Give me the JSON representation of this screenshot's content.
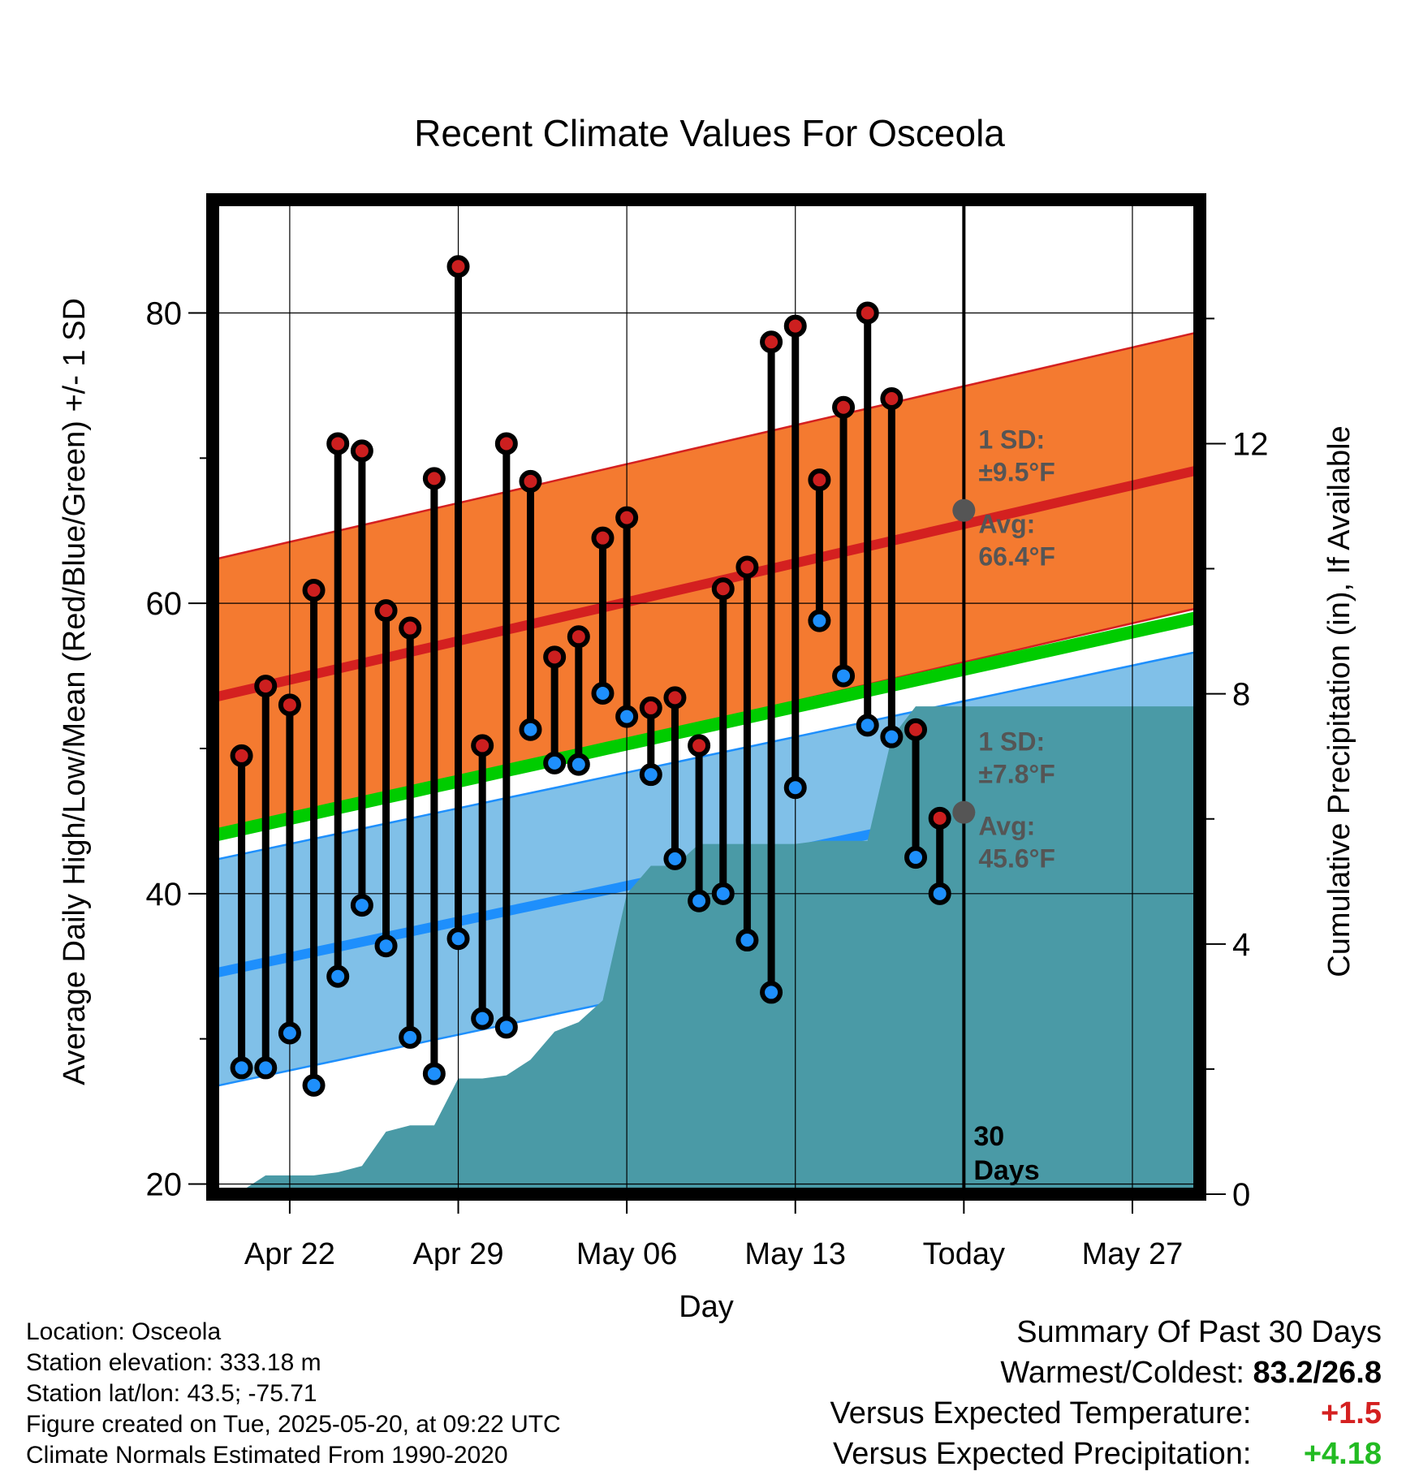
{
  "chart_data": {
    "type": "line",
    "title": "Recent Climate Values For Osceola",
    "xlabel": "Day",
    "ylabel": "Average Daily High/Low/Mean (Red/Blue/Green) +/- 1 SD",
    "y2label": "Cumulative Precipitation (in), If Available",
    "ylim": [
      19.3,
      87.8
    ],
    "y2lim": [
      0,
      15.9
    ],
    "yticks": [
      20,
      40,
      60,
      80
    ],
    "y2ticks": [
      0,
      4,
      8,
      12
    ],
    "x_day_range": [
      -31.2,
      9.8
    ],
    "xticks": [
      {
        "day": -28,
        "label": "Apr 22"
      },
      {
        "day": -21,
        "label": "Apr 29"
      },
      {
        "day": -14,
        "label": "May 06"
      },
      {
        "day": -7,
        "label": "May 13"
      },
      {
        "day": 0,
        "label": "Today"
      },
      {
        "day": 7,
        "label": "May 27"
      }
    ],
    "today_day": 0,
    "window_label": [
      "30",
      "Days"
    ],
    "daily": {
      "days": [
        -30,
        -29,
        -28,
        -27,
        -26,
        -25,
        -24,
        -23,
        -22,
        -21,
        -20,
        -19,
        -18,
        -17,
        -16,
        -15,
        -14,
        -13,
        -12,
        -11,
        -10,
        -9,
        -8,
        -7,
        -6,
        -5,
        -4,
        -3,
        -2,
        -1
      ],
      "highs": [
        49.5,
        54.3,
        53.0,
        60.9,
        71.0,
        70.5,
        59.5,
        58.3,
        68.6,
        83.2,
        50.2,
        71.0,
        68.4,
        56.3,
        57.7,
        64.5,
        65.9,
        52.8,
        53.5,
        50.2,
        61.0,
        62.5,
        78.0,
        79.1,
        68.5,
        73.5,
        80.0,
        74.1,
        51.3,
        45.2
      ],
      "lows": [
        28.0,
        28.0,
        30.4,
        26.8,
        34.3,
        39.2,
        36.4,
        30.1,
        27.6,
        36.9,
        31.4,
        30.8,
        51.3,
        49.0,
        48.9,
        53.8,
        52.2,
        48.2,
        42.4,
        39.5,
        40.0,
        36.8,
        33.2,
        47.3,
        58.8,
        55.0,
        51.6,
        50.8,
        42.5,
        40.0
      ]
    },
    "normals": {
      "day_start": -31.2,
      "day_end": 9.8,
      "high_avg": [
        53.5,
        69.2
      ],
      "high_sd": 9.5,
      "low_avg": [
        34.5,
        48.9
      ],
      "low_sd": 7.8
    },
    "mean_line_color": "#00cc00",
    "high_color": "#d42020",
    "high_band_color": "#f47a30",
    "low_color": "#1e8ffc",
    "low_band_color": "#80c0e8",
    "precip_color": "#4a9aa6",
    "high_point_color": "#cc1f1f",
    "low_point_color": "#1e8ffc",
    "precip": {
      "days": [
        -31.2,
        -30.0,
        -29.0,
        -28.0,
        -27.0,
        -26.0,
        -25.0,
        -24.0,
        -23.0,
        -22.0,
        -21.0,
        -20.0,
        -19.0,
        -18.0,
        -17.0,
        -16.0,
        -15.0,
        -14.0,
        -13.0,
        -12.0,
        -11.0,
        -10.0,
        -9.0,
        -8.0,
        -7.0,
        -6.0,
        -5.0,
        -4.0,
        -3.0,
        -2.0,
        -1.0,
        0.0,
        9.8
      ],
      "values": [
        0.05,
        0.05,
        0.3,
        0.3,
        0.3,
        0.35,
        0.45,
        1.0,
        1.1,
        1.1,
        1.85,
        1.85,
        1.9,
        2.15,
        2.6,
        2.75,
        3.1,
        4.8,
        5.25,
        5.25,
        5.6,
        5.6,
        5.6,
        5.6,
        5.6,
        5.65,
        5.65,
        5.65,
        7.3,
        7.8,
        7.8,
        7.8,
        7.8
      ]
    },
    "annotations": {
      "high_sd_label": "1 SD:",
      "high_sd_value": "±9.5°F",
      "high_avg_label": "Avg:",
      "high_avg_value": "66.4°F",
      "high_avg_today": 66.4,
      "low_sd_label": "1 SD:",
      "low_sd_value": "±7.8°F",
      "low_avg_label": "Avg:",
      "low_avg_value": "45.6°F",
      "low_avg_today": 45.6,
      "annotation_color": "#555555"
    }
  },
  "info": {
    "location": "Location: Osceola",
    "elevation": "Station elevation: 333.18 m",
    "latlon": "Station lat/lon: 43.5; -75.71",
    "created": "Figure created on Tue, 2025-05-20, at 09:22 UTC",
    "normals": "Climate Normals Estimated From 1990-2020"
  },
  "summary": {
    "heading": "Summary Of Past 30 Days",
    "warmest_label": "Warmest/Coldest:",
    "warmest_value": "83.2/26.8",
    "temp_label": "Versus Expected Temperature:",
    "temp_value": "+1.5",
    "temp_color": "#d42020",
    "precip_label": "Versus Expected Precipitation:",
    "precip_value": "+4.18",
    "precip_color": "#22bb22"
  }
}
